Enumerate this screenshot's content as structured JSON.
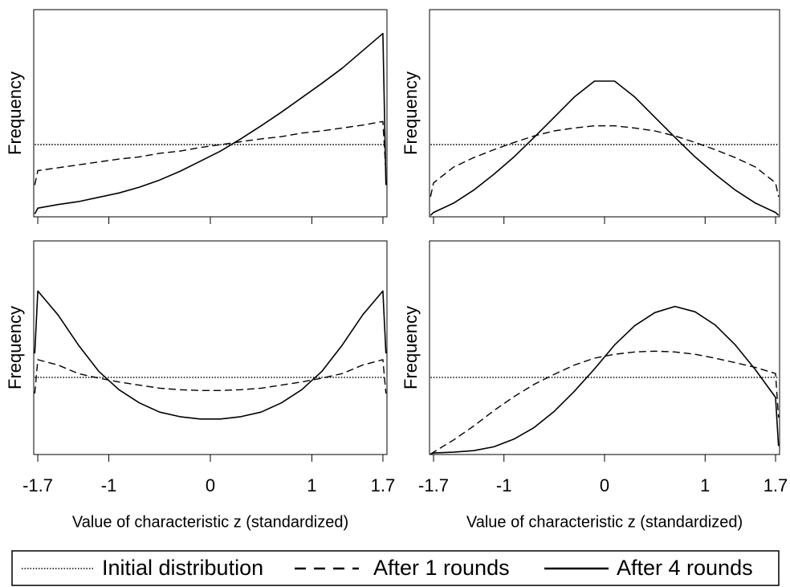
{
  "chart_data": [
    {
      "type": "line",
      "y_label": "Frequency",
      "show_xtick_labels": false,
      "x": [
        -1.73,
        -1.7,
        -1.5,
        -1.3,
        -1.1,
        -0.9,
        -0.7,
        -0.5,
        -0.3,
        -0.1,
        0.1,
        0.3,
        0.5,
        0.7,
        0.9,
        1.1,
        1.3,
        1.5,
        1.7,
        1.73
      ],
      "xlim": [
        -1.74,
        1.74
      ],
      "xticks": [
        -1.7,
        -1,
        0,
        1,
        1.7
      ],
      "ylim": [
        0,
        2.87
      ],
      "series": [
        {
          "name": "Initial distribution",
          "color": "#000000",
          "dash": "dotted",
          "values": [
            1,
            1,
            1,
            1,
            1,
            1,
            1,
            1,
            1,
            1,
            1,
            1,
            1,
            1,
            1,
            1,
            1,
            1,
            1,
            1
          ]
        },
        {
          "name": "After 1 rounds",
          "color": "#000000",
          "dash": "dashed",
          "values": [
            0.44,
            0.64,
            0.68,
            0.72,
            0.76,
            0.8,
            0.83,
            0.88,
            0.91,
            0.96,
            1.0,
            1.04,
            1.08,
            1.11,
            1.16,
            1.19,
            1.23,
            1.27,
            1.32,
            0.61
          ]
        },
        {
          "name": "After 4 rounds",
          "color": "#000000",
          "dash": "solid",
          "values": [
            0.04,
            0.12,
            0.17,
            0.21,
            0.27,
            0.33,
            0.41,
            0.51,
            0.63,
            0.77,
            0.91,
            1.08,
            1.26,
            1.45,
            1.65,
            1.85,
            2.06,
            2.3,
            2.54,
            0.44
          ]
        }
      ]
    },
    {
      "type": "line",
      "y_label": "Frequency",
      "show_xtick_labels": false,
      "x": [
        -1.73,
        -1.7,
        -1.5,
        -1.3,
        -1.1,
        -0.9,
        -0.7,
        -0.5,
        -0.3,
        -0.1,
        0.1,
        0.3,
        0.5,
        0.7,
        0.9,
        1.1,
        1.3,
        1.5,
        1.7,
        1.73
      ],
      "xlim": [
        -1.74,
        1.74
      ],
      "xticks": [
        -1.7,
        -1,
        0,
        1,
        1.7
      ],
      "ylim": [
        0,
        2.87
      ],
      "series": [
        {
          "name": "Initial distribution",
          "color": "#000000",
          "dash": "dotted",
          "values": [
            1,
            1,
            1,
            1,
            1,
            1,
            1,
            1,
            1,
            1,
            1,
            1,
            1,
            1,
            1,
            1,
            1,
            1,
            1,
            1
          ]
        },
        {
          "name": "After 1 rounds",
          "color": "#000000",
          "dash": "dashed",
          "values": [
            0.28,
            0.47,
            0.69,
            0.82,
            0.93,
            1.03,
            1.12,
            1.19,
            1.23,
            1.26,
            1.26,
            1.23,
            1.19,
            1.12,
            1.03,
            0.93,
            0.82,
            0.69,
            0.47,
            0.28
          ]
        },
        {
          "name": "After 4 rounds",
          "color": "#000000",
          "dash": "solid",
          "values": [
            0.02,
            0.06,
            0.19,
            0.37,
            0.59,
            0.83,
            1.1,
            1.38,
            1.66,
            1.88,
            1.88,
            1.66,
            1.38,
            1.1,
            0.83,
            0.59,
            0.37,
            0.19,
            0.06,
            0.02
          ]
        }
      ]
    },
    {
      "type": "line",
      "y_label": "Frequency",
      "x_label": "Value of characteristic z (standardized)",
      "show_xtick_labels": true,
      "x": [
        -1.73,
        -1.7,
        -1.5,
        -1.3,
        -1.1,
        -0.9,
        -0.7,
        -0.5,
        -0.3,
        -0.1,
        0.1,
        0.3,
        0.5,
        0.7,
        0.9,
        1.1,
        1.3,
        1.5,
        1.7,
        1.73
      ],
      "xlim": [
        -1.74,
        1.74
      ],
      "xticks": [
        -1.7,
        -1,
        0,
        1,
        1.7
      ],
      "ylim": [
        0,
        2.77
      ],
      "series": [
        {
          "name": "Initial distribution",
          "color": "#000000",
          "dash": "dotted",
          "values": [
            1,
            1,
            1,
            1,
            1,
            1,
            1,
            1,
            1,
            1,
            1,
            1,
            1,
            1,
            1,
            1,
            1,
            1,
            1,
            1
          ]
        },
        {
          "name": "After 1 rounds",
          "color": "#000000",
          "dash": "dashed",
          "values": [
            0.79,
            1.23,
            1.16,
            1.05,
            0.99,
            0.94,
            0.9,
            0.86,
            0.84,
            0.83,
            0.83,
            0.84,
            0.86,
            0.9,
            0.94,
            0.99,
            1.05,
            1.16,
            1.23,
            0.79
          ]
        },
        {
          "name": "After 4 rounds",
          "color": "#000000",
          "dash": "solid",
          "values": [
            1.31,
            2.12,
            1.81,
            1.42,
            1.08,
            0.84,
            0.67,
            0.55,
            0.49,
            0.46,
            0.46,
            0.49,
            0.55,
            0.67,
            0.84,
            1.08,
            1.42,
            1.81,
            2.12,
            1.31
          ]
        }
      ]
    },
    {
      "type": "line",
      "y_label": "Frequency",
      "x_label": "Value of characteristic z (standardized)",
      "show_xtick_labels": true,
      "x": [
        -1.73,
        -1.7,
        -1.5,
        -1.3,
        -1.1,
        -0.9,
        -0.7,
        -0.5,
        -0.3,
        -0.1,
        0.1,
        0.3,
        0.5,
        0.7,
        0.9,
        1.1,
        1.3,
        1.5,
        1.7,
        1.73
      ],
      "xlim": [
        -1.74,
        1.74
      ],
      "xticks": [
        -1.7,
        -1,
        0,
        1,
        1.7
      ],
      "ylim": [
        0,
        2.77
      ],
      "series": [
        {
          "name": "Initial distribution",
          "color": "#000000",
          "dash": "dotted",
          "values": [
            1,
            1,
            1,
            1,
            1,
            1,
            1,
            1,
            1,
            1,
            1,
            1,
            1,
            1,
            1,
            1,
            1,
            1,
            1,
            1
          ]
        },
        {
          "name": "After 1 rounds",
          "color": "#000000",
          "dash": "dashed",
          "values": [
            0,
            0.03,
            0.19,
            0.37,
            0.57,
            0.75,
            0.91,
            1.04,
            1.16,
            1.25,
            1.3,
            1.33,
            1.34,
            1.33,
            1.3,
            1.25,
            1.19,
            1.13,
            1.05,
            0.48
          ]
        },
        {
          "name": "After 4 rounds",
          "color": "#000000",
          "dash": "solid",
          "values": [
            0.01,
            0.02,
            0.03,
            0.05,
            0.1,
            0.2,
            0.35,
            0.56,
            0.82,
            1.11,
            1.42,
            1.67,
            1.84,
            1.92,
            1.85,
            1.68,
            1.42,
            1.1,
            0.74,
            0.11
          ]
        }
      ]
    }
  ]
}
